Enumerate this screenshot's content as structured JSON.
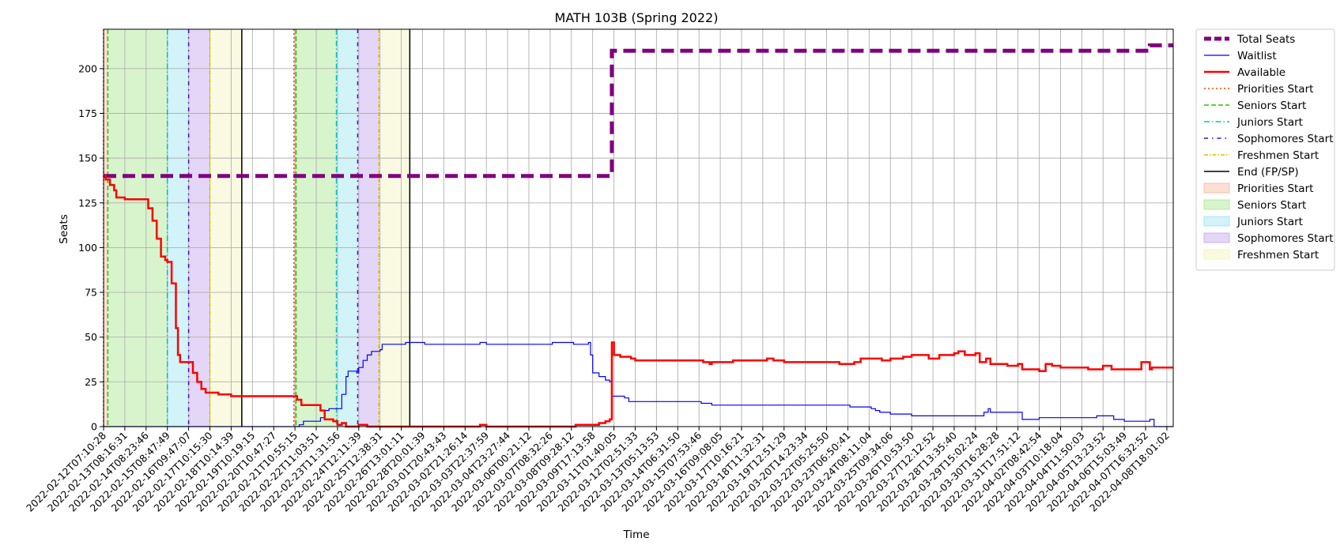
{
  "chart_data": {
    "type": "line",
    "title": "MATH 103B (Spring 2022)",
    "xlabel": "Time",
    "ylabel": "Seats",
    "ylim": [
      0,
      222
    ],
    "yticks": [
      0,
      25,
      50,
      75,
      100,
      125,
      150,
      175,
      200
    ],
    "grid": true,
    "legend_placement": "outside right, top",
    "x_tick_labels": [
      "2022-02-12T07:10:28",
      "2022-02-13T08:16:31",
      "2022-02-14T08:23:46",
      "2022-02-15T08:47:49",
      "2022-02-16T09:47:07",
      "2022-02-17T10:15:30",
      "2022-02-18T10:14:39",
      "2022-02-19T10:19:15",
      "2022-02-20T10:47:27",
      "2022-02-21T10:55:15",
      "2022-02-22T11:03:51",
      "2022-02-23T11:31:56",
      "2022-02-24T12:11:39",
      "2022-02-25T12:38:31",
      "2022-02-26T13:01:11",
      "2022-02-28T20:01:39",
      "2022-03-01T20:43:43",
      "2022-03-02T21:26:14",
      "2022-03-03T22:37:59",
      "2022-03-04T23:27:44",
      "2022-03-06T00:21:12",
      "2022-03-07T08:32:26",
      "2022-03-08T09:28:12",
      "2022-03-09T17:13:58",
      "2022-03-11T01:40:05",
      "2022-03-12T02:51:33",
      "2022-03-13T05:13:53",
      "2022-03-14T06:31:50",
      "2022-03-15T07:53:46",
      "2022-03-16T09:08:05",
      "2022-03-17T10:16:21",
      "2022-03-18T11:32:31",
      "2022-03-19T12:51:29",
      "2022-03-20T14:23:34",
      "2022-03-22T05:25:50",
      "2022-03-23T06:50:41",
      "2022-03-24T08:11:04",
      "2022-03-25T09:34:06",
      "2022-03-26T10:53:50",
      "2022-03-27T12:12:52",
      "2022-03-28T13:35:40",
      "2022-03-29T15:02:24",
      "2022-03-30T16:28:28",
      "2022-03-31T17:51:12",
      "2022-04-02T08:42:54",
      "2022-04-03T10:18:04",
      "2022-04-04T11:50:03",
      "2022-04-05T13:23:52",
      "2022-04-06T15:03:49",
      "2022-04-07T16:32:52",
      "2022-04-08T18:01:02"
    ],
    "x_index_range": [
      0,
      50.3
    ],
    "shaded_periods": [
      {
        "name": "Priorities Start",
        "color": "#f4a582",
        "start": 0.0,
        "end": 0.2
      },
      {
        "name": "Seniors Start",
        "color": "#90e070",
        "start": 0.2,
        "end": 3.0
      },
      {
        "name": "Juniors Start",
        "color": "#7fdde8",
        "start": 3.0,
        "end": 4.0
      },
      {
        "name": "Sophomores Start",
        "color": "#b08ae8",
        "start": 4.0,
        "end": 5.0
      },
      {
        "name": "Freshmen Start",
        "color": "#eef0a8",
        "start": 5.0,
        "end": 6.5
      },
      {
        "name": "Priorities Start",
        "color": "#f4a582",
        "start": 8.95,
        "end": 9.05
      },
      {
        "name": "Seniors Start",
        "color": "#90e070",
        "start": 9.05,
        "end": 10.95
      },
      {
        "name": "Juniors Start",
        "color": "#7fdde8",
        "start": 10.95,
        "end": 11.95
      },
      {
        "name": "Sophomores Start",
        "color": "#b08ae8",
        "start": 11.95,
        "end": 12.95
      },
      {
        "name": "Freshmen Start",
        "color": "#eef0a8",
        "start": 12.95,
        "end": 14.4
      }
    ],
    "vertical_markers": [
      {
        "name": "Priorities Start",
        "x": 0.0,
        "color": "#ff4500",
        "dash": "2,3"
      },
      {
        "name": "Seniors Start",
        "x": 0.2,
        "color": "#2ec000",
        "dash": "6,3"
      },
      {
        "name": "Juniors Start",
        "x": 3.0,
        "color": "#00bfbf",
        "dash": "7,3,1.5,3"
      },
      {
        "name": "Sophomores Start",
        "x": 4.0,
        "color": "#5000d0",
        "dash": "5,5,1.5,5"
      },
      {
        "name": "Freshmen Start",
        "x": 5.0,
        "color": "#d4c000",
        "dash": "5,2,1.5,2"
      },
      {
        "name": "End (FP/SP)",
        "x": 6.5,
        "color": "#000000",
        "dash": ""
      },
      {
        "name": "Priorities Start",
        "x": 8.95,
        "color": "#ff4500",
        "dash": "2,3"
      },
      {
        "name": "Seniors Start",
        "x": 9.05,
        "color": "#2ec000",
        "dash": "6,3"
      },
      {
        "name": "Juniors Start",
        "x": 10.95,
        "color": "#00bfbf",
        "dash": "7,3,1.5,3"
      },
      {
        "name": "Sophomores Start",
        "x": 11.95,
        "color": "#5000d0",
        "dash": "5,5,1.5,5"
      },
      {
        "name": "Freshmen Start",
        "x": 12.95,
        "color": "#d4c000",
        "dash": "5,2,1.5,2"
      },
      {
        "name": "End (FP/SP)",
        "x": 14.4,
        "color": "#000000",
        "dash": ""
      }
    ],
    "series": [
      {
        "name": "Total Seats",
        "color": "#800080",
        "style": "dashed-thick",
        "points": [
          [
            0,
            140
          ],
          [
            23.8,
            140
          ],
          [
            23.9,
            210
          ],
          [
            49.1,
            210
          ],
          [
            49.2,
            213
          ],
          [
            50.3,
            213
          ]
        ]
      },
      {
        "name": "Waitlist",
        "color": "#0000ff",
        "style": "solid-thin",
        "points": [
          [
            0,
            0
          ],
          [
            9.0,
            0
          ],
          [
            9.2,
            1
          ],
          [
            9.4,
            3
          ],
          [
            10.0,
            3
          ],
          [
            10.2,
            5
          ],
          [
            10.4,
            9
          ],
          [
            10.6,
            10
          ],
          [
            11.0,
            10
          ],
          [
            11.2,
            18
          ],
          [
            11.4,
            28
          ],
          [
            11.5,
            31
          ],
          [
            11.9,
            30
          ],
          [
            12.0,
            33
          ],
          [
            12.2,
            37
          ],
          [
            12.4,
            40
          ],
          [
            12.6,
            42
          ],
          [
            13.0,
            43
          ],
          [
            13.1,
            46
          ],
          [
            14.0,
            46
          ],
          [
            14.2,
            47
          ],
          [
            15.0,
            47
          ],
          [
            15.1,
            46
          ],
          [
            17.6,
            46
          ],
          [
            17.7,
            47
          ],
          [
            18.0,
            46
          ],
          [
            21.0,
            46
          ],
          [
            21.1,
            47
          ],
          [
            22.0,
            47
          ],
          [
            22.1,
            46
          ],
          [
            22.8,
            47
          ],
          [
            22.9,
            40
          ],
          [
            23.0,
            30
          ],
          [
            23.3,
            28
          ],
          [
            23.6,
            26
          ],
          [
            23.8,
            25
          ],
          [
            23.9,
            17
          ],
          [
            24.5,
            16
          ],
          [
            24.7,
            14
          ],
          [
            28.0,
            14
          ],
          [
            28.1,
            13
          ],
          [
            28.6,
            12
          ],
          [
            35.0,
            12
          ],
          [
            35.1,
            11
          ],
          [
            36.0,
            11
          ],
          [
            36.1,
            10
          ],
          [
            36.3,
            9
          ],
          [
            36.5,
            8
          ],
          [
            37.0,
            7
          ],
          [
            38.0,
            6
          ],
          [
            41.2,
            6
          ],
          [
            41.4,
            8
          ],
          [
            41.6,
            10
          ],
          [
            41.7,
            8
          ],
          [
            43.0,
            8
          ],
          [
            43.2,
            4
          ],
          [
            44.0,
            5
          ],
          [
            46.6,
            5
          ],
          [
            46.7,
            6
          ],
          [
            47.5,
            4
          ],
          [
            48.0,
            3
          ],
          [
            49.0,
            3
          ],
          [
            49.2,
            4
          ],
          [
            49.4,
            0
          ],
          [
            50.3,
            0
          ]
        ]
      },
      {
        "name": "Available",
        "color": "#ff0000",
        "style": "solid-thick",
        "points": [
          [
            0,
            140
          ],
          [
            0.1,
            138
          ],
          [
            0.3,
            135
          ],
          [
            0.5,
            132
          ],
          [
            0.6,
            128
          ],
          [
            1.0,
            127
          ],
          [
            2.0,
            127
          ],
          [
            2.1,
            122
          ],
          [
            2.3,
            115
          ],
          [
            2.5,
            105
          ],
          [
            2.7,
            95
          ],
          [
            2.9,
            93
          ],
          [
            3.0,
            92
          ],
          [
            3.2,
            80
          ],
          [
            3.4,
            55
          ],
          [
            3.5,
            40
          ],
          [
            3.6,
            36
          ],
          [
            4.0,
            36
          ],
          [
            4.2,
            30
          ],
          [
            4.4,
            25
          ],
          [
            4.6,
            21
          ],
          [
            4.8,
            19
          ],
          [
            5.0,
            19
          ],
          [
            5.4,
            18
          ],
          [
            6.0,
            17
          ],
          [
            9.0,
            17
          ],
          [
            9.1,
            15
          ],
          [
            9.3,
            12
          ],
          [
            10.0,
            12
          ],
          [
            10.2,
            9
          ],
          [
            10.4,
            4
          ],
          [
            10.8,
            3
          ],
          [
            11.0,
            1
          ],
          [
            11.2,
            2
          ],
          [
            11.4,
            0
          ],
          [
            12.0,
            1
          ],
          [
            12.4,
            0
          ],
          [
            17.5,
            0
          ],
          [
            17.7,
            1
          ],
          [
            18.0,
            0
          ],
          [
            22.0,
            0
          ],
          [
            22.2,
            1
          ],
          [
            23.0,
            1
          ],
          [
            23.3,
            2
          ],
          [
            23.6,
            3
          ],
          [
            23.8,
            4
          ],
          [
            23.9,
            47
          ],
          [
            24.0,
            40
          ],
          [
            24.3,
            39
          ],
          [
            24.8,
            38
          ],
          [
            25.0,
            37
          ],
          [
            28.0,
            37
          ],
          [
            28.2,
            36
          ],
          [
            28.5,
            35
          ],
          [
            28.6,
            36
          ],
          [
            29.5,
            36
          ],
          [
            29.6,
            37
          ],
          [
            31.0,
            37
          ],
          [
            31.2,
            38
          ],
          [
            31.5,
            37
          ],
          [
            32.0,
            36
          ],
          [
            34.5,
            36
          ],
          [
            34.6,
            35
          ],
          [
            35.0,
            35
          ],
          [
            35.3,
            36
          ],
          [
            35.6,
            38
          ],
          [
            36.0,
            38
          ],
          [
            36.4,
            38
          ],
          [
            36.6,
            37
          ],
          [
            37.0,
            38
          ],
          [
            37.6,
            39
          ],
          [
            38.0,
            40
          ],
          [
            38.8,
            38
          ],
          [
            39.3,
            40
          ],
          [
            40.0,
            41
          ],
          [
            40.2,
            42
          ],
          [
            40.5,
            40
          ],
          [
            41.0,
            41
          ],
          [
            41.2,
            36
          ],
          [
            41.5,
            38
          ],
          [
            41.7,
            35
          ],
          [
            42.0,
            35
          ],
          [
            42.5,
            34
          ],
          [
            43.0,
            35
          ],
          [
            43.2,
            32
          ],
          [
            44.0,
            31
          ],
          [
            44.3,
            35
          ],
          [
            44.6,
            34
          ],
          [
            45.0,
            33
          ],
          [
            46.0,
            33
          ],
          [
            46.3,
            32
          ],
          [
            47.0,
            34
          ],
          [
            47.4,
            32
          ],
          [
            48.0,
            32
          ],
          [
            48.6,
            32
          ],
          [
            48.8,
            36
          ],
          [
            49.1,
            36
          ],
          [
            49.2,
            32
          ],
          [
            49.3,
            33
          ],
          [
            50.3,
            33
          ]
        ]
      }
    ],
    "legend": [
      {
        "label": "Total Seats",
        "kind": "line",
        "color": "#800080",
        "dash": "9,4",
        "width": 5
      },
      {
        "label": "Waitlist",
        "kind": "line",
        "color": "#0000ff",
        "dash": "",
        "width": 1.2
      },
      {
        "label": "Available",
        "kind": "line",
        "color": "#ff0000",
        "dash": "",
        "width": 2.5
      },
      {
        "label": "Priorities Start",
        "kind": "line",
        "color": "#ff4500",
        "dash": "2,3",
        "width": 1.5
      },
      {
        "label": "Seniors Start",
        "kind": "line",
        "color": "#2ec000",
        "dash": "6,3",
        "width": 1.5
      },
      {
        "label": "Juniors Start",
        "kind": "line",
        "color": "#00bfbf",
        "dash": "7,3,1.5,3",
        "width": 1.5
      },
      {
        "label": "Sophomores Start",
        "kind": "line",
        "color": "#5000d0",
        "dash": "5,5,1.5,5",
        "width": 1.5
      },
      {
        "label": "Freshmen Start",
        "kind": "line",
        "color": "#d4c000",
        "dash": "5,2,1.5,2",
        "width": 1.5
      },
      {
        "label": "End (FP/SP)",
        "kind": "line",
        "color": "#000000",
        "dash": "",
        "width": 1.5
      },
      {
        "label": "Priorities Start",
        "kind": "patch",
        "color": "#f4a582"
      },
      {
        "label": "Seniors Start",
        "kind": "patch",
        "color": "#90e070"
      },
      {
        "label": "Juniors Start",
        "kind": "patch",
        "color": "#7fdde8"
      },
      {
        "label": "Sophomores Start",
        "kind": "patch",
        "color": "#b08ae8"
      },
      {
        "label": "Freshmen Start",
        "kind": "patch",
        "color": "#eef0a8"
      }
    ]
  }
}
